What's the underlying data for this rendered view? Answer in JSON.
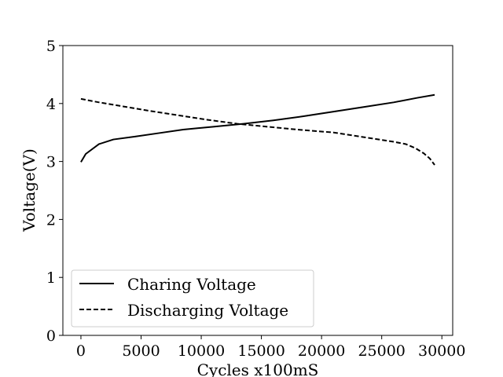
{
  "chart_data": {
    "type": "line",
    "title": "",
    "xlabel": "Cycles x100mS",
    "ylabel": "Voltage(V)",
    "xlim": [
      -1500,
      30900
    ],
    "ylim": [
      0,
      5
    ],
    "xticks": [
      0,
      5000,
      10000,
      15000,
      20000,
      25000,
      30000
    ],
    "yticks": [
      0,
      1,
      2,
      3,
      4,
      5
    ],
    "xtick_labels": [
      "0",
      "5000",
      "10000",
      "15000",
      "20000",
      "25000",
      "30000"
    ],
    "ytick_labels": [
      "0",
      "1",
      "2",
      "3",
      "4",
      "5"
    ],
    "grid": false,
    "legend_position": "lower-left",
    "series": [
      {
        "name": "Charing Voltage",
        "style": "solid",
        "color": "#000000",
        "x": [
          0,
          400,
          1500,
          2700,
          4500,
          6500,
          8500,
          11000,
          13500,
          16000,
          18500,
          21000,
          23500,
          26000,
          28000,
          29400
        ],
        "y": [
          2.99,
          3.13,
          3.3,
          3.38,
          3.43,
          3.49,
          3.55,
          3.6,
          3.65,
          3.71,
          3.78,
          3.86,
          3.94,
          4.02,
          4.1,
          4.15
        ]
      },
      {
        "name": "Discharging Voltage",
        "style": "dashed",
        "color": "#000000",
        "x": [
          0,
          1500,
          3500,
          5500,
          8000,
          10500,
          13000,
          15500,
          18000,
          21000,
          23500,
          26000,
          27000,
          27800,
          28500,
          29000,
          29400
        ],
        "y": [
          4.08,
          4.02,
          3.95,
          3.88,
          3.8,
          3.72,
          3.65,
          3.6,
          3.55,
          3.5,
          3.42,
          3.34,
          3.3,
          3.23,
          3.14,
          3.05,
          2.94
        ]
      }
    ]
  }
}
